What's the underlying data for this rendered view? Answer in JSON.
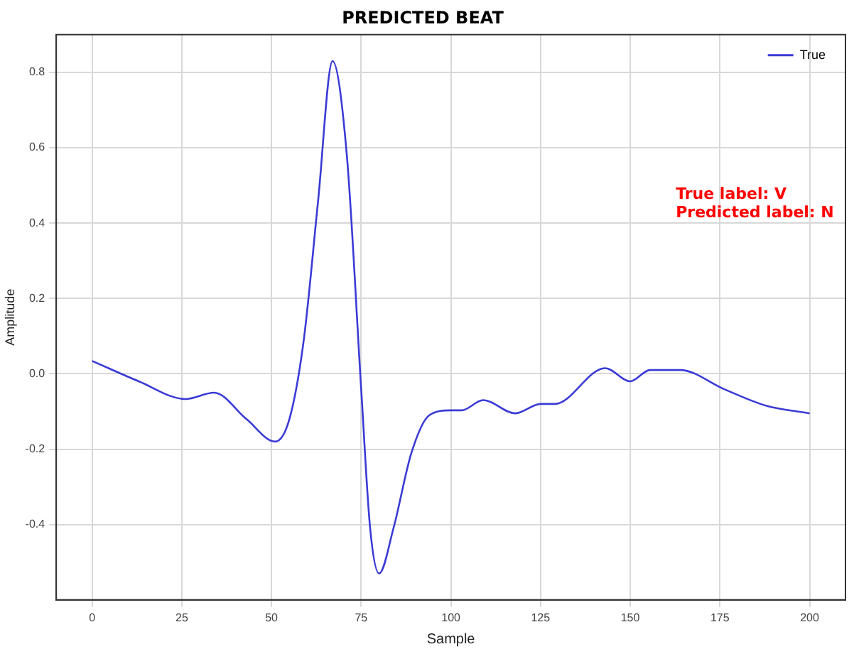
{
  "chart_data": {
    "type": "line",
    "title": "PREDICTED BEAT",
    "xlabel": "Sample",
    "ylabel": "Amplitude",
    "series": [
      {
        "name": "True",
        "color": "#3b3bd6",
        "x": [
          0,
          13,
          26,
          34,
          43,
          51,
          55,
          59,
          63,
          67,
          71,
          75,
          77.5,
          80,
          84,
          89,
          94,
          100,
          103,
          109,
          118,
          125,
          129,
          143,
          150,
          155.5,
          164,
          176,
          188,
          200
        ],
        "values": [
          0.034,
          -0.02,
          -0.067,
          -0.05,
          -0.12,
          -0.18,
          -0.12,
          0.09,
          0.46,
          0.83,
          0.58,
          -0.04,
          -0.41,
          -0.53,
          -0.41,
          -0.21,
          -0.11,
          -0.097,
          -0.097,
          -0.07,
          -0.105,
          -0.08,
          -0.08,
          0.015,
          -0.02,
          0.01,
          0.01,
          -0.04,
          -0.085,
          -0.105
        ]
      }
    ],
    "xlim": [
      -10,
      210
    ],
    "xticks": [
      0,
      25,
      50,
      75,
      100,
      125,
      150,
      175,
      200
    ],
    "ylim": [
      -0.6,
      0.9
    ],
    "yticks": [
      {
        "value": -0.4,
        "label": "-0.4"
      },
      {
        "value": -0.2,
        "label": "-0.2"
      },
      {
        "value": 0,
        "label": "0.0"
      },
      {
        "value": 0.2,
        "label": "0.2"
      },
      {
        "value": 0.4,
        "label": "0.4"
      },
      {
        "value": 0.6,
        "label": "0.6"
      },
      {
        "value": 0.8,
        "label": "0.8"
      }
    ],
    "annotations": [
      "True label: V",
      "Predicted label: N"
    ],
    "grid": true,
    "legend": "top right",
    "marker": "none",
    "line_style": "solid"
  }
}
